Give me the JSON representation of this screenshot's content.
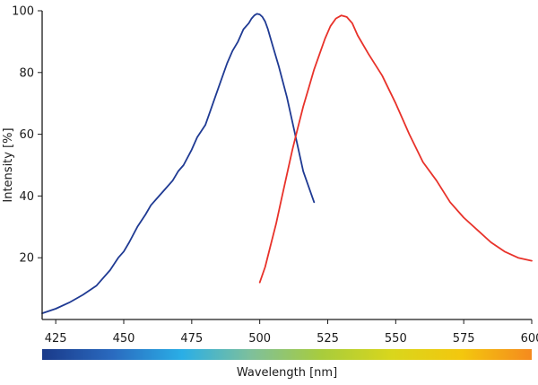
{
  "chart_data": {
    "type": "line",
    "title": "",
    "xlabel": "Wavelength [nm]",
    "ylabel": "Intensity [%]",
    "xlim": [
      420,
      600
    ],
    "ylim": [
      0,
      100
    ],
    "x_ticks": [
      425,
      450,
      475,
      500,
      525,
      550,
      575,
      600
    ],
    "y_ticks": [
      20,
      40,
      60,
      80,
      100
    ],
    "grid": false,
    "legend": "none",
    "colorbar": {
      "orientation": "horizontal",
      "stops": [
        "#1a3a8a",
        "#2a6abf",
        "#2aaee6",
        "#7fc09a",
        "#a8cc3c",
        "#d9d61c",
        "#f3c70e",
        "#f58a1e"
      ]
    },
    "series": [
      {
        "color": "#1f3a93",
        "x": [
          420,
          425,
          430,
          435,
          440,
          442,
          445,
          448,
          450,
          452,
          455,
          458,
          460,
          463,
          465,
          468,
          470,
          472,
          475,
          477,
          480,
          482,
          484,
          486,
          488,
          490,
          492,
          494,
          496,
          497,
          498,
          499,
          500,
          501,
          502,
          503,
          504,
          505,
          507,
          510,
          513,
          516,
          520
        ],
        "y": [
          2,
          3.5,
          5.5,
          8,
          11,
          13,
          16,
          20,
          22,
          25,
          30,
          34,
          37,
          40,
          42,
          45,
          48,
          50,
          55,
          59,
          63,
          68,
          73,
          78,
          83,
          87,
          90,
          94,
          96,
          97.5,
          98.5,
          99,
          98.8,
          98,
          96.5,
          94,
          91,
          88,
          82,
          72,
          60,
          48,
          38
        ]
      },
      {
        "color": "#e8322a",
        "x": [
          500,
          502,
          504,
          506,
          508,
          510,
          512,
          514,
          516,
          518,
          520,
          522,
          524,
          526,
          528,
          530,
          532,
          534,
          536,
          540,
          545,
          550,
          555,
          560,
          565,
          570,
          575,
          580,
          585,
          590,
          595,
          600
        ],
        "y": [
          12,
          17,
          24,
          31,
          39,
          47,
          55,
          62,
          69,
          75,
          81,
          86,
          91,
          95,
          97.5,
          98.5,
          98,
          96,
          92,
          86,
          79,
          70,
          60,
          51,
          45,
          38,
          33,
          29,
          25,
          22,
          20,
          19
        ]
      }
    ]
  }
}
